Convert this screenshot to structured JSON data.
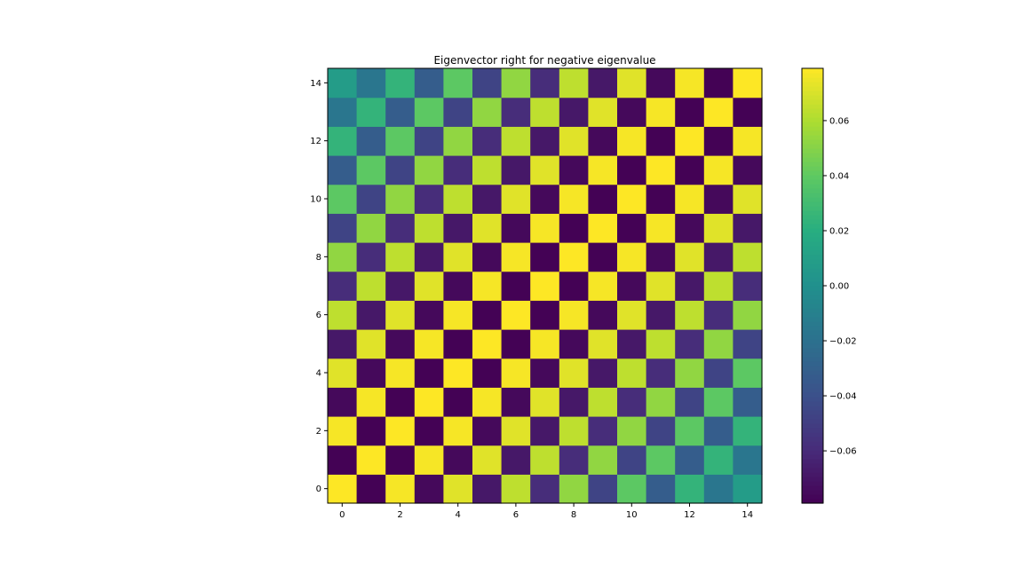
{
  "chart_data": {
    "type": "heatmap",
    "title": "Eigenvector right for negative eigenvalue",
    "xlabel": "",
    "ylabel": "",
    "size": 15,
    "x_range": [
      -0.5,
      14.5
    ],
    "y_range": [
      -0.5,
      14.5
    ],
    "origin": "lower",
    "colormap": "viridis",
    "value_min": -0.079,
    "value_max": 0.079,
    "value_formula": "(-1)^(i+j) * 0.079 * cos(pi*(i-j)/30), i = column, j = row",
    "x_ticks": [
      0,
      2,
      4,
      6,
      8,
      10,
      12,
      14
    ],
    "y_ticks": [
      0,
      2,
      4,
      6,
      8,
      10,
      12,
      14
    ],
    "x_tick_labels": [
      "0",
      "2",
      "4",
      "6",
      "8",
      "10",
      "12",
      "14"
    ],
    "y_tick_labels": [
      "0",
      "2",
      "4",
      "6",
      "8",
      "10",
      "12",
      "14"
    ],
    "colorbar": {
      "ticks": [
        -0.06,
        -0.04,
        -0.02,
        0.0,
        0.02,
        0.04,
        0.06
      ],
      "tick_labels": [
        "−0.06",
        "−0.04",
        "−0.02",
        "0.00",
        "0.02",
        "0.04",
        "0.06"
      ]
    }
  }
}
